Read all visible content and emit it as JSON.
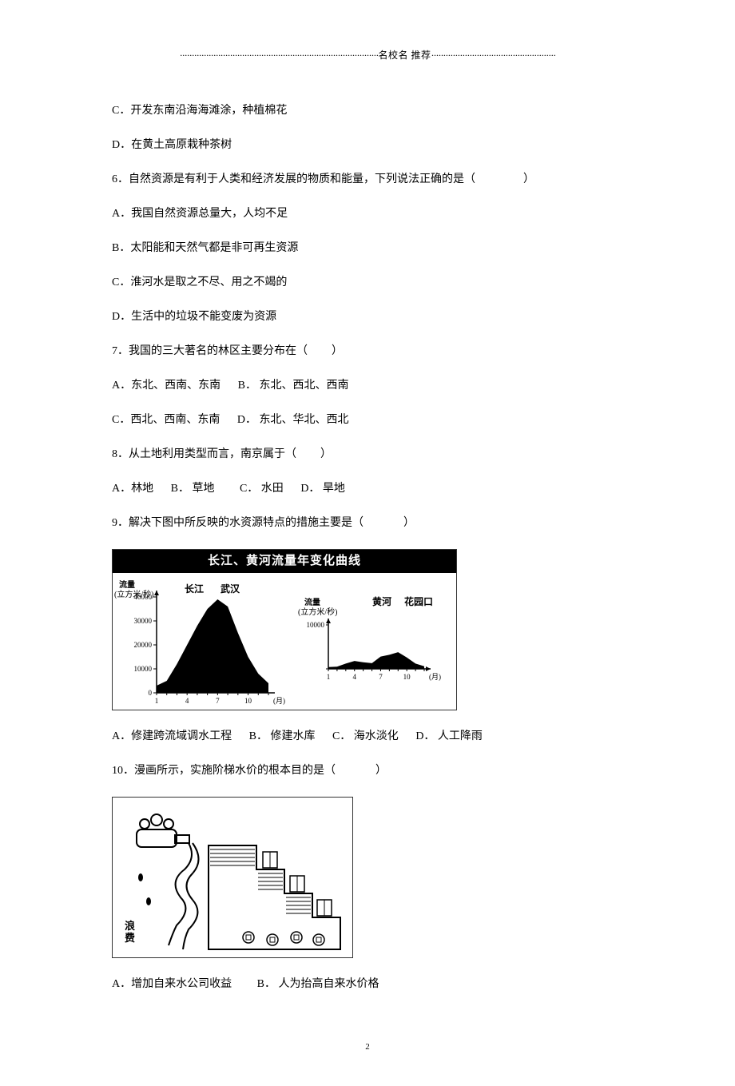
{
  "header": {
    "left_dots": "···················································································",
    "center": "名校名 推荐",
    "right_dots": "····················································"
  },
  "q5_options": {
    "c": "C．开发东南沿海海滩涂，种植棉花",
    "d": "D．在黄土高原栽种茶树"
  },
  "q6": {
    "stem_pre": "6．自然资源是有利于人类和经济发展的物质和能量，下列说法正确的是（",
    "stem_post": "）",
    "a": "A．我国自然资源总量大，人均不足",
    "b": "B．太阳能和天然气都是非可再生资源",
    "c": "C．淮河水是取之不尽、用之不竭的",
    "d": "D．生活中的垃圾不能变废为资源"
  },
  "q7": {
    "stem_pre": "7．我国的三大著名的林区主要分布在（",
    "stem_post": "）",
    "a": "A．东北、西南、东南",
    "b": "B． 东北、西北、西南",
    "c": "C．西北、西南、东南",
    "d": "D． 东北、华北、西北"
  },
  "q8": {
    "stem_pre": "8．从土地利用类型而言，南京属于（",
    "stem_post": "）",
    "a": "A．林地",
    "b": "B． 草地",
    "c": "C． 水田",
    "d": "D．  旱地"
  },
  "q9": {
    "stem_pre": "9．解决下图中所反映的水资源特点的措施主要是（",
    "stem_post": "）",
    "chart": {
      "title": "长江、黄河流量年变化曲线",
      "left": {
        "river": "长江",
        "station": "武汉",
        "y_unit_l1": "流量",
        "y_unit_l2": "(立方米/秒)",
        "ymax": 40000,
        "yticks": [
          0,
          10000,
          20000,
          30000,
          40000
        ],
        "xticks": [
          1,
          4,
          7,
          10
        ],
        "x_unit": "(月)",
        "values": [
          3000,
          5000,
          12000,
          20000,
          28000,
          35000,
          39000,
          36000,
          25000,
          15000,
          8000,
          4000
        ],
        "fill": "#000000"
      },
      "right": {
        "river": "黄河",
        "station": "花园口",
        "y_unit_l1": "流量",
        "y_unit_l2": "(立方米/秒)",
        "ymax": 10000,
        "yticks": [
          0,
          10000
        ],
        "xticks": [
          1,
          4,
          7,
          10
        ],
        "x_unit": "(月)",
        "values": [
          400,
          500,
          1200,
          1800,
          1500,
          1300,
          2800,
          3200,
          3800,
          2600,
          1200,
          600
        ],
        "fill": "#000000"
      }
    },
    "a": "A．修建跨流域调水工程",
    "b": "B． 修建水库",
    "c": "C． 海水淡化",
    "d": "D． 人工降雨"
  },
  "q10": {
    "stem_pre": "10．漫画所示，实施阶梯水价的根本目的是（",
    "stem_post": "）",
    "cartoon_label_left": "浪费",
    "a": "A．增加自来水公司收益",
    "b": "B．  人为抬高自来水价格"
  },
  "page_number": "2"
}
